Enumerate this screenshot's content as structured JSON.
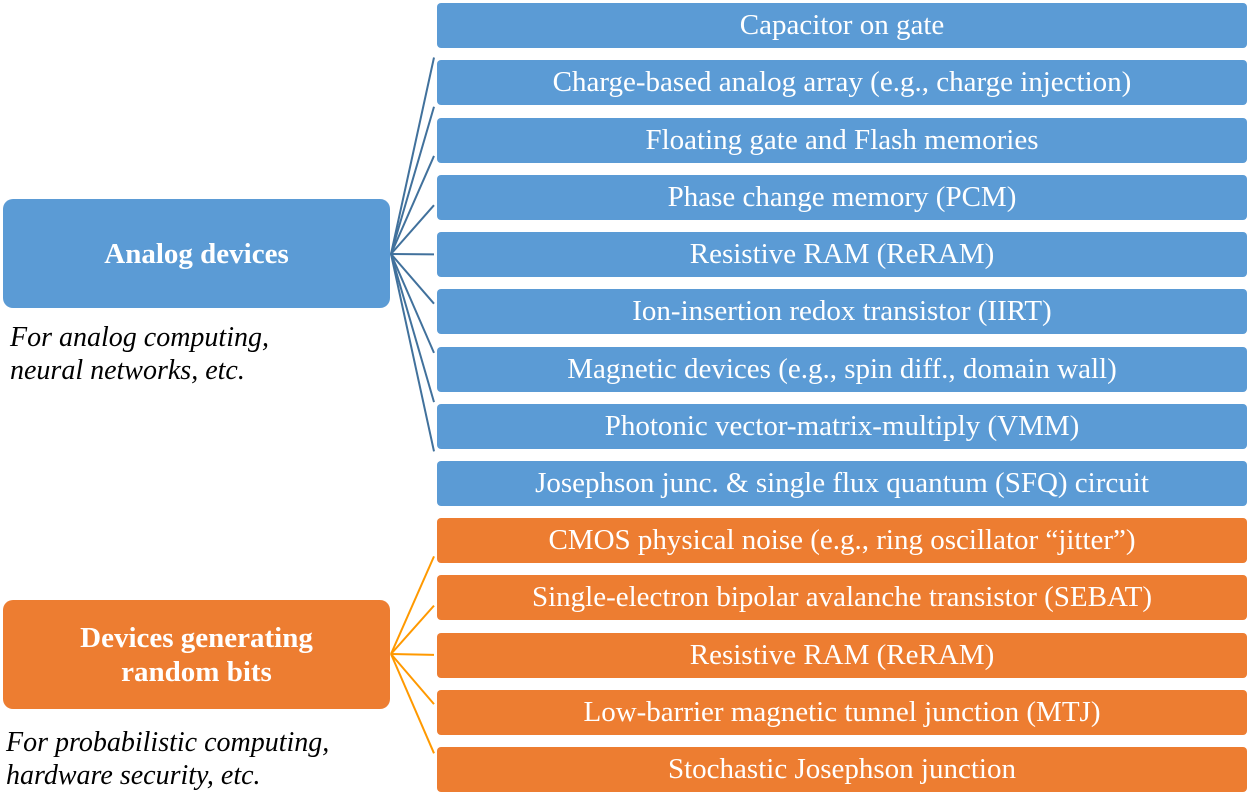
{
  "colors": {
    "analog_box": "#5b9bd5",
    "analog_line": "#41719c",
    "random_box": "#ed7d31",
    "random_line": "#ff9900"
  },
  "analog": {
    "title": "Analog devices",
    "caption_line1": "For analog computing,",
    "caption_line2": "neural networks, etc.",
    "items": [
      "Capacitor on gate",
      "Charge-based analog array (e.g., charge injection)",
      "Floating gate and Flash memories",
      "Phase change memory (PCM)",
      "Resistive RAM (ReRAM)",
      "Ion-insertion redox transistor (IIRT)",
      "Magnetic devices (e.g., spin diff., domain wall)",
      "Photonic vector-matrix-multiply (VMM)",
      "Josephson junc. & single flux quantum (SFQ) circuit"
    ]
  },
  "random": {
    "title": "Devices generating random bits",
    "caption_line1": "For probabilistic computing,",
    "caption_line2": "hardware security, etc.",
    "items": [
      "CMOS physical noise (e.g., ring oscillator “jitter”)",
      "Single-electron bipolar avalanche transistor (SEBAT)",
      "Resistive RAM (ReRAM)",
      "Low-barrier magnetic tunnel junction (MTJ)",
      "Stochastic Josephson junction"
    ]
  }
}
